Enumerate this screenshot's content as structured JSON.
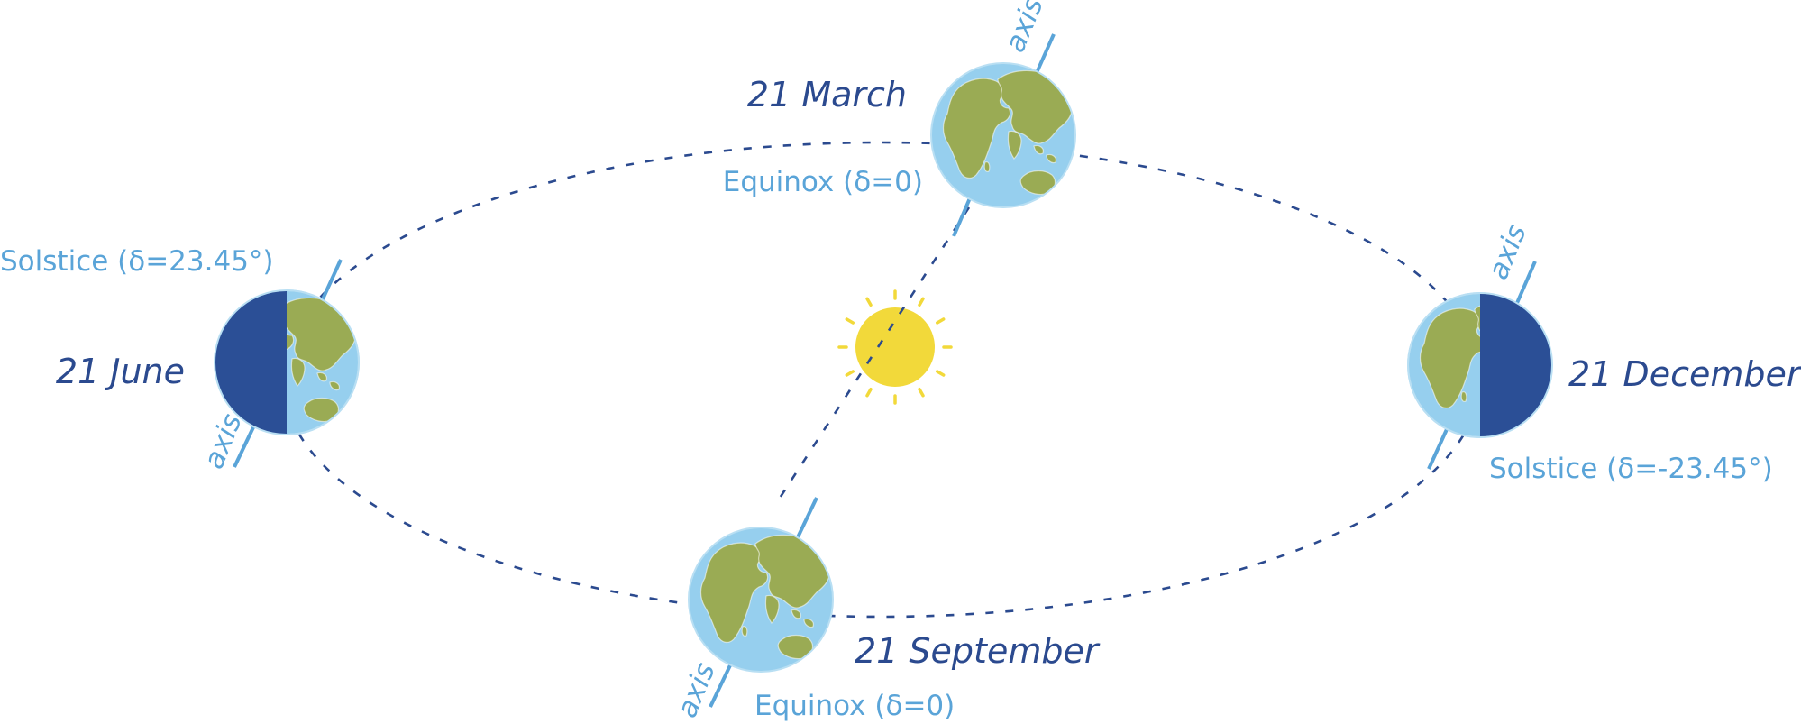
{
  "colors": {
    "ocean": "#96cfee",
    "land": "#9aab54",
    "night": "#2b4f96",
    "sun": "#f2d93a",
    "orbit": "#2b4a8f",
    "date_text": "#2b4a8f",
    "event_text": "#5aa4d8",
    "axis": "#5aa4d8"
  },
  "positions": {
    "march": {
      "date": "21 March",
      "event": "Equinox (δ=0)",
      "axis_label": "axis"
    },
    "june": {
      "date": "21 June",
      "event": "Solstice (δ=23.45°)",
      "axis_label": "axis"
    },
    "september": {
      "date": "21 September",
      "event": "Equinox (δ=0)",
      "axis_label": "axis"
    },
    "december": {
      "date": "21 December",
      "event": "Solstice (δ=-23.45°)",
      "axis_label": "axis"
    }
  },
  "icons": {
    "sun": "sun-icon",
    "earth": "earth-globe-icon"
  }
}
